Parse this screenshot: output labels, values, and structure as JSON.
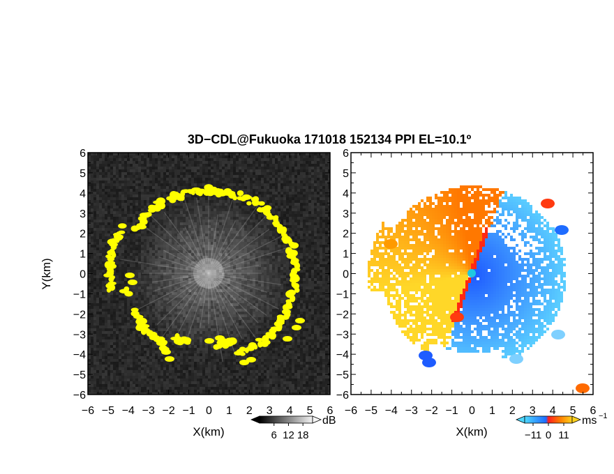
{
  "title": "3D−CDL@Fukuoka 171018 152134 PPI EL=10.1º",
  "chart_data": [
    {
      "type": "heatmap",
      "panel": "left",
      "field": "reflectivity",
      "xlabel": "X(km)",
      "ylabel": "Y(km)",
      "xlim": [
        -6,
        6
      ],
      "ylim": [
        -6,
        6
      ],
      "xticks": [
        "−6",
        "−5",
        "−4",
        "−3",
        "−2",
        "−1",
        "0",
        "1",
        "2",
        "3",
        "4",
        "5",
        "6"
      ],
      "yticks": [
        "6",
        "5",
        "4",
        "3",
        "2",
        "1",
        "0",
        "−1",
        "−2",
        "−3",
        "−4",
        "−5",
        "−6"
      ],
      "colorbar": {
        "unit": "dB",
        "ticks": [
          "6",
          "12",
          "18"
        ],
        "tick_values": [
          6,
          12,
          18
        ],
        "range": [
          0,
          22
        ]
      },
      "colors": {
        "background": "#1e1e1e",
        "echo_ring": "#ffff00",
        "clutter": "#9a9a9a"
      }
    },
    {
      "type": "heatmap",
      "panel": "right",
      "field": "radial velocity",
      "xlabel": "X(km)",
      "xlim": [
        -6,
        6
      ],
      "ylim": [
        -6,
        6
      ],
      "xticks": [
        "−6",
        "−5",
        "−4",
        "−3",
        "−2",
        "−1",
        "0",
        "1",
        "2",
        "3",
        "4",
        "5",
        "6"
      ],
      "yticks": [
        "6",
        "5",
        "4",
        "3",
        "2",
        "1",
        "0",
        "−1",
        "−2",
        "−3",
        "−4",
        "−5",
        "−6"
      ],
      "colorbar": {
        "unit": "ms",
        "unit_exp": "−1",
        "ticks": [
          "−11",
          "0",
          "11"
        ],
        "tick_values": [
          -11,
          0,
          11
        ],
        "range": [
          -17,
          17
        ]
      },
      "colors": {
        "negative": "#1e6cff",
        "negative_light": "#4fd8ff",
        "positive": "#ff7f00",
        "positive_light": "#ffd21e",
        "center": "#20c8e0"
      }
    }
  ]
}
